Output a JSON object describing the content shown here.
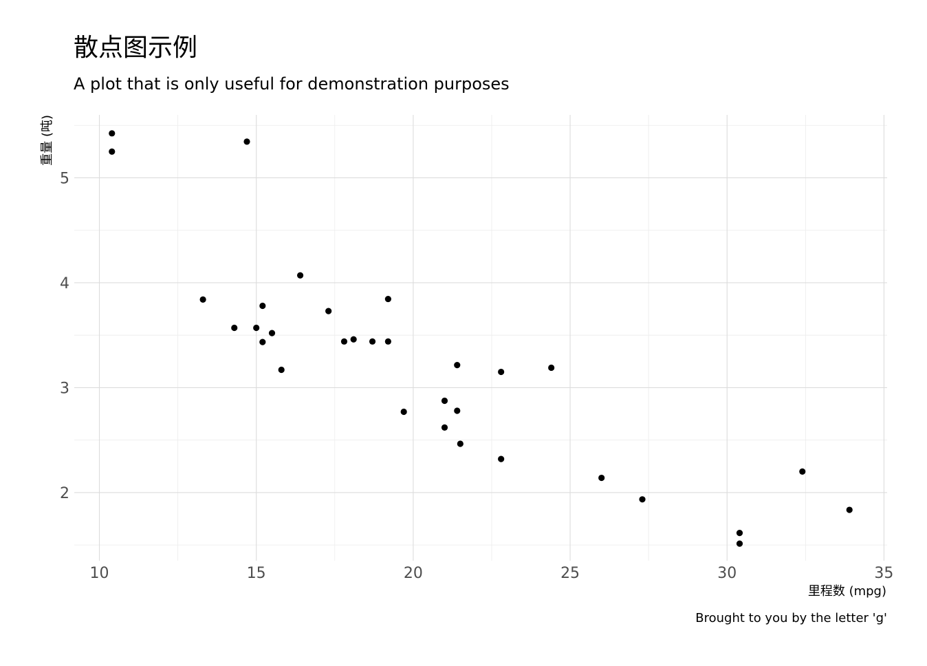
{
  "chart_data": {
    "type": "scatter",
    "title": "散点图示例",
    "subtitle": "A plot that is only useful for demonstration purposes",
    "caption": "Brought to you by the letter 'g'",
    "xlabel": "里程数 (mpg)",
    "ylabel": "重量 (吨)",
    "xlim": [
      9.2,
      35.1
    ],
    "ylim": [
      1.35,
      5.6
    ],
    "xticks": [
      10,
      15,
      20,
      25,
      30,
      35
    ],
    "yticks": [
      2,
      3,
      4,
      5
    ],
    "grid": true,
    "legend": "none",
    "point_color": "#000000",
    "series": [
      {
        "x": [
          21.0,
          21.0,
          22.8,
          21.4,
          18.7,
          18.1,
          14.3,
          24.4,
          22.8,
          19.2,
          17.8,
          16.4,
          17.3,
          15.2,
          10.4,
          10.4,
          14.7,
          32.4,
          30.4,
          33.9,
          21.5,
          15.5,
          15.2,
          13.3,
          19.2,
          27.3,
          26.0,
          30.4,
          15.8,
          19.7,
          15.0,
          21.4
        ],
        "y": [
          2.62,
          2.875,
          2.32,
          3.215,
          3.44,
          3.46,
          3.57,
          3.19,
          3.15,
          3.44,
          3.44,
          4.07,
          3.73,
          3.78,
          5.25,
          5.424,
          5.345,
          2.2,
          1.615,
          1.835,
          2.465,
          3.52,
          3.435,
          3.84,
          3.845,
          1.935,
          2.14,
          1.513,
          3.17,
          2.77,
          3.57,
          2.78
        ]
      }
    ]
  }
}
